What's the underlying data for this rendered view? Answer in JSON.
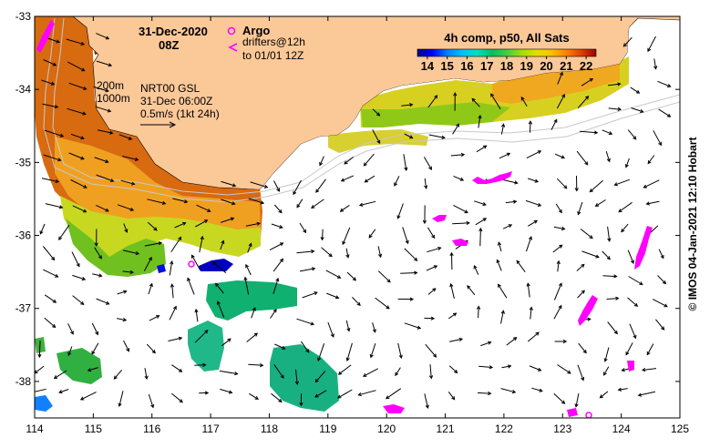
{
  "map": {
    "title_date": "31-Dec-2020",
    "title_time": "08Z",
    "argo_label": "Argo",
    "drifters_line1": "drifters@12h",
    "drifters_line2": "to 01/01 12Z",
    "contour_200": "200m",
    "contour_1000": "1000m",
    "current_product": "NRT00 GSL",
    "current_time": "31-Dec 06:00Z",
    "scale_label": "0.5m/s (1kt 24h)",
    "colorbar_title": "4h comp, p50, All Sats",
    "colorbar_ticks": [
      "14",
      "15",
      "16",
      "17",
      "18",
      "19",
      "20",
      "21",
      "22"
    ],
    "colorbar_range": [
      13.5,
      22.5
    ],
    "colorbar_colors": [
      "#000080",
      "#0000ff",
      "#0080ff",
      "#00c0ff",
      "#00e0c0",
      "#00c060",
      "#40d040",
      "#a0e000",
      "#e0e000",
      "#ffc000",
      "#ff8000",
      "#e04000",
      "#a00000"
    ],
    "land_color": "#fbc898",
    "argo_color": "#ff00ff",
    "lon_ticks": [
      "114",
      "115",
      "116",
      "117",
      "118",
      "119",
      "120",
      "121",
      "122",
      "123",
      "124",
      "125"
    ],
    "lat_ticks": [
      "-33",
      "-34",
      "-35",
      "-36",
      "-37",
      "-38"
    ],
    "lon_range": [
      114,
      125
    ],
    "lat_range": [
      -33,
      -38.5
    ],
    "credit": "© IMOS 04-Jan-2021 12:10 Hobart"
  }
}
